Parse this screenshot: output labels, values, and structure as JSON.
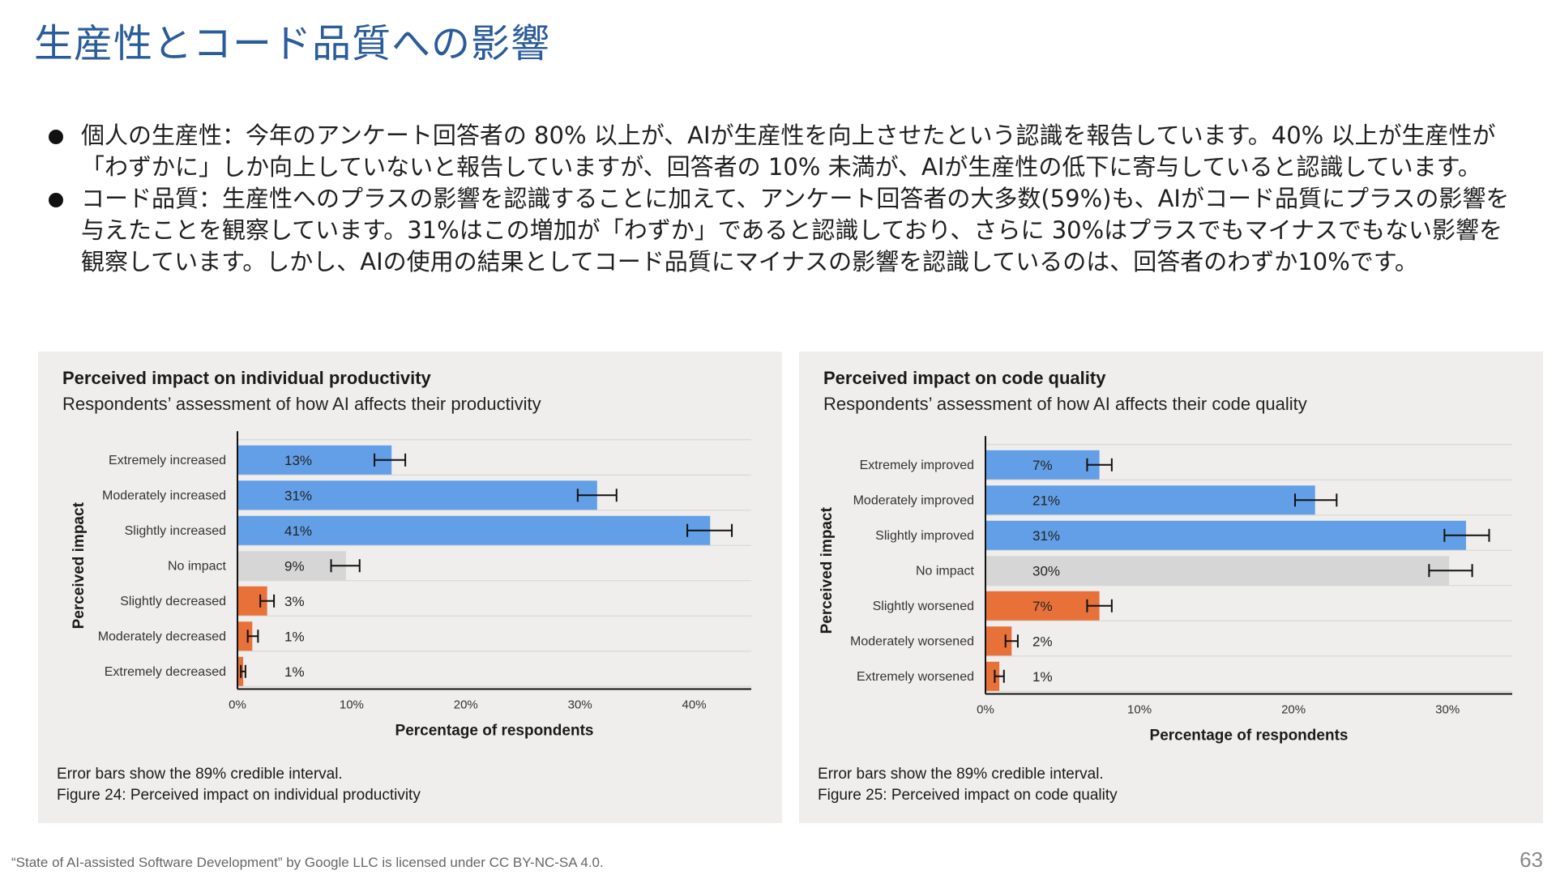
{
  "slide": {
    "title": "生産性とコード品質への影響",
    "bullets": [
      "個人の生産性：今年のアンケート回答者の 80% 以上が、AIが生産性を向上させたという認識を報告しています。40% 以上が生産性が「わずかに」しか向上していないと報告していますが、回答者の 10% 未満が、AIが生産性の低下に寄与していると認識しています。",
      "コード品質：生産性へのプラスの影響を認識することに加えて、アンケート回答者の大多数(59%)も、AIがコード品質にプラスの影響を与えたことを観察しています。31%はこの増加が「わずか」であると認識しており、さらに 30%はプラスでもマイナスでもない影響を観察しています。しかし、AIの使用の結果としてコード品質にマイナスの影響を認識しているのは、回答者のわずか10%です。"
    ],
    "footer": "“State of AI-assisted Software Development” by Google LLC is licensed under CC BY-NC-SA 4.0.",
    "page_number": "63"
  },
  "colors": {
    "positive": "#639fe6",
    "neutral": "#d6d6d6",
    "negative": "#e8713a",
    "title": "#2b5c9a"
  },
  "chart_data": [
    {
      "type": "bar",
      "orientation": "horizontal",
      "title": "Perceived impact on individual productivity",
      "subtitle": "Respondents’ assessment of how AI affects their productivity",
      "categories": [
        "Extremely increased",
        "Moderately increased",
        "Slightly increased",
        "No impact",
        "Slightly decreased",
        "Moderately decreased",
        "Extremely decreased"
      ],
      "values": [
        13,
        31,
        41,
        9,
        3,
        1,
        1
      ],
      "plotted_values": [
        13.5,
        31.5,
        41.4,
        9.5,
        2.6,
        1.3,
        0.5
      ],
      "value_labels": [
        "13%",
        "31%",
        "41%",
        "9%",
        "3%",
        "1%",
        "1%"
      ],
      "error_bars": [
        [
          12,
          14.7
        ],
        [
          29.8,
          33.2
        ],
        [
          39.4,
          43.3
        ],
        [
          8.2,
          10.7
        ],
        [
          2,
          3.2
        ],
        [
          0.9,
          1.8
        ],
        [
          0.3,
          0.7
        ]
      ],
      "groups": [
        "positive",
        "positive",
        "positive",
        "neutral",
        "negative",
        "negative",
        "negative"
      ],
      "xlim": [
        0,
        45
      ],
      "ticks": [
        0,
        10,
        20,
        30,
        40
      ],
      "tick_labels": [
        "0%",
        "10%",
        "20%",
        "30%",
        "40%"
      ],
      "xlabel": "Percentage of respondents",
      "ylabel": "Perceived impact",
      "notes": [
        "Error bars show the 89% credible interval.",
        "Figure 24: Perceived impact on individual productivity"
      ]
    },
    {
      "type": "bar",
      "orientation": "horizontal",
      "title": "Perceived impact on code quality",
      "subtitle": "Respondents’ assessment of how AI affects their code quality",
      "categories": [
        "Extremely improved",
        "Moderately improved",
        "Slightly improved",
        "No impact",
        "Slightly worsened",
        "Moderately worsened",
        "Extremely worsened"
      ],
      "values": [
        7,
        21,
        31,
        30,
        7,
        2,
        1
      ],
      "plotted_values": [
        7.4,
        21.4,
        31.2,
        30.1,
        7.4,
        1.7,
        0.9
      ],
      "value_labels": [
        "7%",
        "21%",
        "31%",
        "30%",
        "7%",
        "2%",
        "1%"
      ],
      "error_bars": [
        [
          6.6,
          8.2
        ],
        [
          20.1,
          22.8
        ],
        [
          29.8,
          32.7
        ],
        [
          28.8,
          31.6
        ],
        [
          6.6,
          8.2
        ],
        [
          1.3,
          2.1
        ],
        [
          0.6,
          1.2
        ]
      ],
      "groups": [
        "positive",
        "positive",
        "positive",
        "neutral",
        "negative",
        "negative",
        "negative"
      ],
      "xlim": [
        0,
        34.2
      ],
      "ticks": [
        0,
        10,
        20,
        30
      ],
      "tick_labels": [
        "0%",
        "10%",
        "20%",
        "30%"
      ],
      "xlabel": "Percentage of respondents",
      "ylabel": "Perceived impact",
      "notes": [
        "Error bars show the 89% credible interval.",
        "Figure 25: Perceived impact on code quality"
      ]
    }
  ]
}
